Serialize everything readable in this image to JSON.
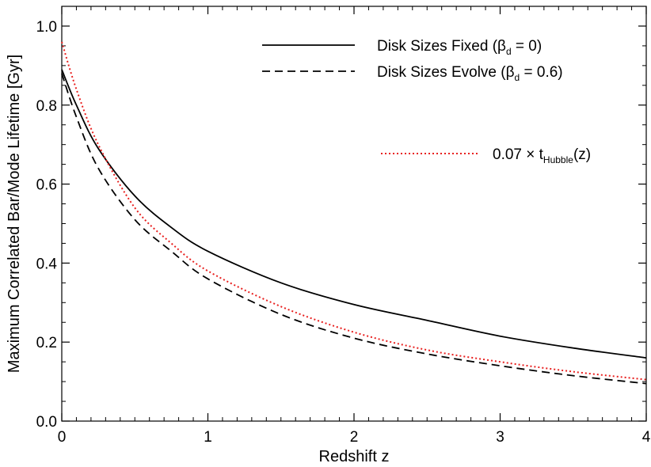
{
  "chart_data": {
    "type": "line",
    "xlabel": "Redshift z",
    "ylabel": "Maximum Correlated Bar/Mode Lifetime  [Gyr]",
    "xlim": [
      0,
      4
    ],
    "ylim": [
      0,
      1.05
    ],
    "x_ticks": [
      "0",
      "1",
      "2",
      "3",
      "4"
    ],
    "y_ticks": [
      "0.0",
      "0.2",
      "0.4",
      "0.6",
      "0.8",
      "1.0"
    ],
    "x_tick_values": [
      0,
      1,
      2,
      3,
      4
    ],
    "y_tick_values": [
      0,
      0.2,
      0.4,
      0.6,
      0.8,
      1.0
    ],
    "legend_position": "top-right",
    "series": [
      {
        "name": "Disk Sizes Fixed (βd = 0)",
        "legend_main": "Disk Sizes Fixed (β",
        "legend_sub": "d",
        "legend_tail": " = 0)",
        "style": "solid",
        "color": "#000000",
        "x": [
          0,
          0.1,
          0.25,
          0.5,
          0.75,
          1.0,
          1.5,
          2.0,
          2.5,
          3.0,
          3.5,
          4.0
        ],
        "y": [
          0.89,
          0.8,
          0.69,
          0.57,
          0.49,
          0.43,
          0.35,
          0.295,
          0.255,
          0.215,
          0.185,
          0.16
        ]
      },
      {
        "name": "Disk Sizes Evolve (βd = 0.6)",
        "legend_main": "Disk Sizes Evolve (β",
        "legend_sub": "d",
        "legend_tail": " = 0.6)",
        "style": "dashed",
        "color": "#000000",
        "x": [
          0,
          0.1,
          0.25,
          0.5,
          0.75,
          1.0,
          1.5,
          2.0,
          2.5,
          3.0,
          3.5,
          4.0
        ],
        "y": [
          0.88,
          0.77,
          0.64,
          0.51,
          0.43,
          0.36,
          0.27,
          0.21,
          0.17,
          0.14,
          0.115,
          0.095
        ]
      },
      {
        "name": "0.07 × tHubble(z)",
        "legend_main": "0.07 × t",
        "legend_sub": "Hubble",
        "legend_tail": "(z)",
        "style": "dotted",
        "color": "#e8201f",
        "x": [
          0,
          0.1,
          0.25,
          0.5,
          0.75,
          1.0,
          1.5,
          2.0,
          2.5,
          3.0,
          3.5,
          4.0
        ],
        "y": [
          0.96,
          0.84,
          0.7,
          0.54,
          0.45,
          0.38,
          0.29,
          0.225,
          0.18,
          0.15,
          0.125,
          0.105
        ]
      }
    ]
  }
}
